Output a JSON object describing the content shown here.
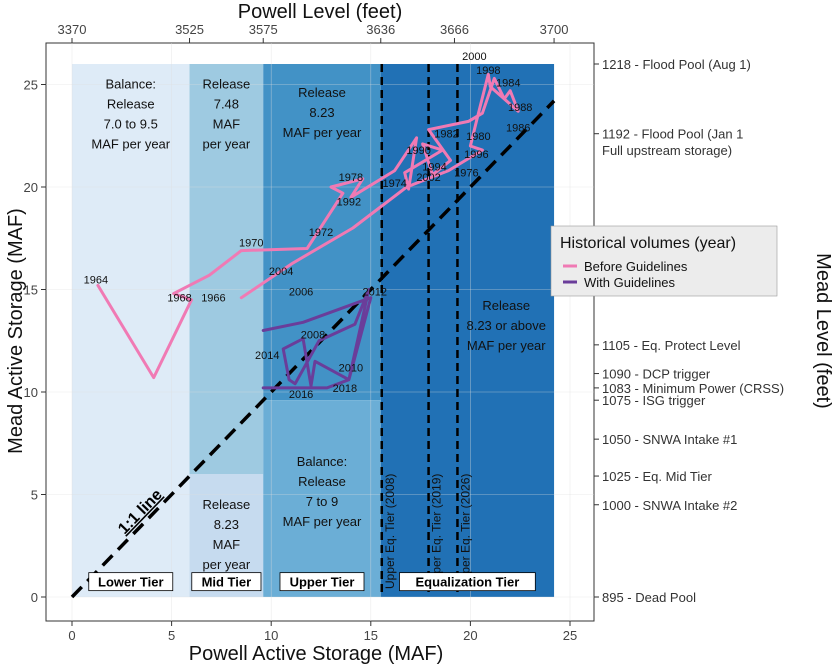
{
  "chart_data": {
    "type": "line",
    "xlabel": "Powell Active Storage (MAF)",
    "ylabel": "Mead Active Storage (MAF)",
    "top_axis_title": "Powell Level (feet)",
    "right_axis_title": "Mead Level (feet)",
    "xlim": [
      0,
      25
    ],
    "ylim": [
      0,
      26
    ],
    "xticks": [
      0,
      5,
      10,
      15,
      20,
      25
    ],
    "yticks": [
      0,
      5,
      10,
      15,
      20,
      25
    ],
    "top_ticks": [
      {
        "label": "3370",
        "x": 0
      },
      {
        "label": "3525",
        "x": 5.9
      },
      {
        "label": "3575",
        "x": 9.6
      },
      {
        "label": "3636",
        "x": 15.5
      },
      {
        "label": "3666",
        "x": 19.2
      },
      {
        "label": "3700",
        "x": 24.2
      }
    ],
    "right_ticks": [
      {
        "label": "1218 - Flood Pool (Aug 1)",
        "y": 26
      },
      {
        "label": "1192 - Flood Pool (Jan 1",
        "y": 22.6
      },
      {
        "label": "Full upstream storage)",
        "y": 21.8,
        "continuation": true
      },
      {
        "label": "1105 - Eq. Protect Level",
        "y": 12.3
      },
      {
        "label": "1090 - DCP trigger",
        "y": 10.9
      },
      {
        "label": "1083 - Minimum Power (CRSS)",
        "y": 10.2
      },
      {
        "label": "1075 - ISG trigger",
        "y": 9.6
      },
      {
        "label": "1050 - SNWA Intake #1",
        "y": 7.7
      },
      {
        "label": "1025 - Eq. Mid Tier",
        "y": 5.9
      },
      {
        "label": "1000 - SNWA Intake #2",
        "y": 4.5
      },
      {
        "label": "895 - Dead Pool",
        "y": 0
      }
    ],
    "zones": [
      {
        "x0": 0,
        "x1": 5.9,
        "y0": 0,
        "y1": 26,
        "color": "#deebf7"
      },
      {
        "x0": 5.9,
        "x1": 9.6,
        "y0": 6.0,
        "y1": 26,
        "color": "#9ecae1"
      },
      {
        "x0": 5.9,
        "x1": 9.6,
        "y0": 0,
        "y1": 6.0,
        "color": "#c6dbef"
      },
      {
        "x0": 9.6,
        "x1": 15.5,
        "y0": 9.6,
        "y1": 26,
        "color": "#4292c6"
      },
      {
        "x0": 9.6,
        "x1": 15.5,
        "y0": 0,
        "y1": 9.6,
        "color": "#6baed6"
      },
      {
        "x0": 15.5,
        "x1": 24.2,
        "y0": 0,
        "y1": 26,
        "color": "#2171b5"
      }
    ],
    "zone_notes": [
      {
        "lines": [
          "Balance:",
          "Release",
          "7.0 to 9.5",
          "MAF per year"
        ],
        "x": 2.95,
        "y": 24.8
      },
      {
        "lines": [
          "Release",
          "7.48",
          "MAF",
          "per year"
        ],
        "x": 7.75,
        "y": 24.8
      },
      {
        "lines": [
          "Release",
          "8.23",
          "MAF per year"
        ],
        "x": 12.55,
        "y": 24.4
      },
      {
        "lines": [
          "Release",
          "8.23 or above",
          "MAF per year"
        ],
        "x": 21.8,
        "y": 14.0
      },
      {
        "lines": [
          "Balance:",
          "Release",
          "7 to 9",
          "MAF per year"
        ],
        "x": 12.55,
        "y": 6.4
      },
      {
        "lines": [
          "Release",
          "8.23",
          "MAF",
          "per year"
        ],
        "x": 7.75,
        "y": 4.3
      }
    ],
    "tier_labels": [
      {
        "text": "Lower Tier",
        "x": 2.95,
        "y": 0.7
      },
      {
        "text": "Mid Tier",
        "x": 7.75,
        "y": 0.7
      },
      {
        "text": "Upper Tier",
        "x": 12.55,
        "y": 0.7
      },
      {
        "text": "Equalization Tier",
        "x": 19.85,
        "y": 0.7
      }
    ],
    "dashed_lines": [
      {
        "x": 15.55,
        "label": "Upper Eq. Tier (2008)"
      },
      {
        "x": 17.9,
        "label": "Upper Eq. Tier (2019)"
      },
      {
        "x": 19.35,
        "label": "Upper Eq. Tier (2026)"
      }
    ],
    "one_to_one_label": "1:1 line",
    "legend": {
      "title": "Historical volumes (year)",
      "items": [
        {
          "label": "Before Guidelines",
          "color": "#f07ab4"
        },
        {
          "label": "With Guidelines",
          "color": "#6a3d9a"
        }
      ]
    },
    "series": [
      {
        "name": "Before Guidelines",
        "color": "#f07ab4",
        "x": [
          1.3,
          4.1,
          6.0,
          5.1,
          6.9,
          8.5,
          11.8,
          13.6,
          13.0,
          14.6,
          14.0,
          16.2,
          17.3,
          16.9,
          16.7,
          18.6,
          17.6,
          18.1,
          19.0,
          17.9,
          19.9,
          20.6,
          21.2,
          21.7,
          22.0,
          22.4,
          21.0,
          20.9,
          20.3,
          20.0,
          20.6,
          18.9,
          16.8,
          14.1,
          11.1,
          8.5
        ],
        "y": [
          15.2,
          10.7,
          14.5,
          14.8,
          15.7,
          16.9,
          17.0,
          19.7,
          20.0,
          20.4,
          19.5,
          20.8,
          22.4,
          19.9,
          20.7,
          21.8,
          22.1,
          20.6,
          21.3,
          22.8,
          23.2,
          23.6,
          25.3,
          24.3,
          24.7,
          23.7,
          24.9,
          25.5,
          23.2,
          22.0,
          21.8,
          20.8,
          20.0,
          18.0,
          16.3,
          14.6
        ]
      },
      {
        "name": "With Guidelines",
        "color": "#6a3d9a",
        "x": [
          9.6,
          11.6,
          15.0,
          13.9,
          12.2,
          12.0,
          11.6,
          10.6,
          10.9,
          11.2,
          12.4,
          14.2,
          14.9,
          13.9,
          12.8,
          9.6
        ],
        "y": [
          13.0,
          13.4,
          14.6,
          10.6,
          11.5,
          10.3,
          12.6,
          12.1,
          10.6,
          10.4,
          12.5,
          13.3,
          15.0,
          10.6,
          10.2,
          10.2
        ]
      }
    ],
    "point_labels": [
      {
        "year": "1964",
        "x": 1.2,
        "y": 15.5
      },
      {
        "year": "1966",
        "x": 7.1,
        "y": 14.6
      },
      {
        "year": "1968",
        "x": 5.4,
        "y": 14.6
      },
      {
        "year": "1970",
        "x": 9.0,
        "y": 17.3
      },
      {
        "year": "1972",
        "x": 12.5,
        "y": 17.8
      },
      {
        "year": "1974",
        "x": 16.2,
        "y": 20.2
      },
      {
        "year": "1976",
        "x": 19.8,
        "y": 20.7
      },
      {
        "year": "1978",
        "x": 14.0,
        "y": 20.5
      },
      {
        "year": "1980",
        "x": 20.4,
        "y": 22.5
      },
      {
        "year": "1982",
        "x": 18.8,
        "y": 22.6
      },
      {
        "year": "1984",
        "x": 21.9,
        "y": 25.1
      },
      {
        "year": "1986",
        "x": 22.4,
        "y": 22.9
      },
      {
        "year": "1988",
        "x": 22.5,
        "y": 23.9
      },
      {
        "year": "1990",
        "x": 17.4,
        "y": 21.8
      },
      {
        "year": "1992",
        "x": 13.9,
        "y": 19.3
      },
      {
        "year": "1994",
        "x": 18.2,
        "y": 21.0
      },
      {
        "year": "1996",
        "x": 20.3,
        "y": 21.6
      },
      {
        "year": "1998",
        "x": 20.9,
        "y": 25.7
      },
      {
        "year": "2000",
        "x": 20.2,
        "y": 26.4
      },
      {
        "year": "2002",
        "x": 17.9,
        "y": 20.5
      },
      {
        "year": "2004",
        "x": 10.5,
        "y": 15.9
      },
      {
        "year": "2006",
        "x": 11.5,
        "y": 14.9
      },
      {
        "year": "2008",
        "x": 12.1,
        "y": 12.8
      },
      {
        "year": "2010",
        "x": 14.0,
        "y": 11.2
      },
      {
        "year": "2012",
        "x": 15.2,
        "y": 14.9
      },
      {
        "year": "2014",
        "x": 9.8,
        "y": 11.8
      },
      {
        "year": "2016",
        "x": 11.5,
        "y": 9.9
      },
      {
        "year": "2018",
        "x": 13.7,
        "y": 10.2
      }
    ]
  }
}
